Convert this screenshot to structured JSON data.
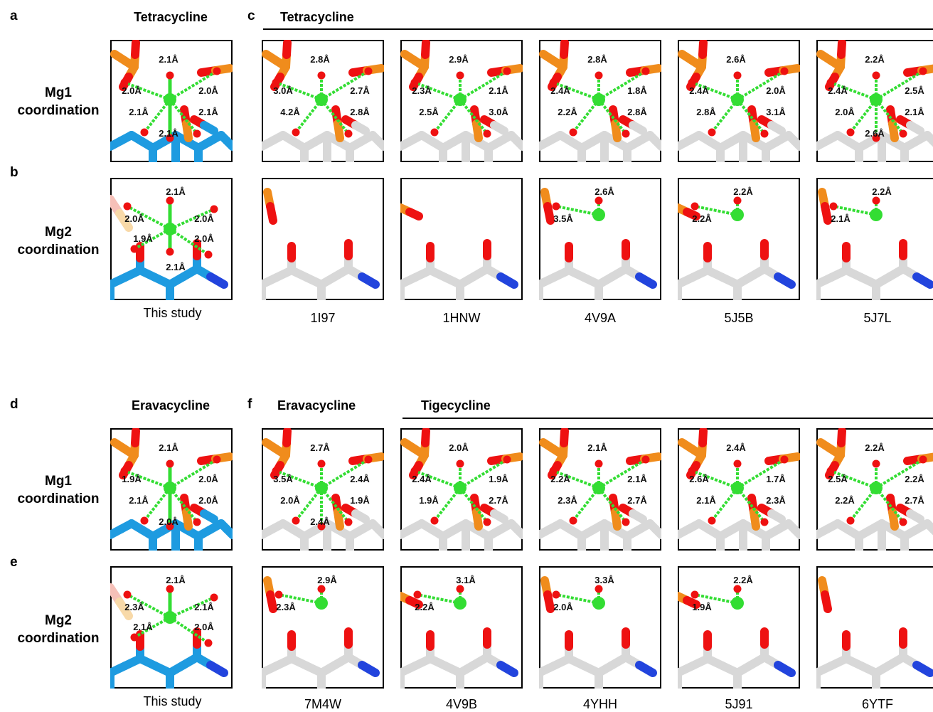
{
  "panel_letters": {
    "a": "a",
    "b": "b",
    "c": "c",
    "d": "d",
    "e": "e",
    "f": "f"
  },
  "top": {
    "ref_title": "Tetracycline",
    "group_title": "Tetracycline",
    "mg1_label": [
      "Mg1",
      "coordination"
    ],
    "mg2_label": [
      "Mg2",
      "coordination"
    ],
    "ref_caption": "This study",
    "captions": [
      "1I97",
      "1HNW",
      "4V9A",
      "5J5B",
      "5J7L"
    ]
  },
  "bottom": {
    "ref_title": "Eravacycline",
    "group1_title": "Eravacycline",
    "group2_title": "Tigecycline",
    "mg1_label": [
      "Mg1",
      "coordination"
    ],
    "mg2_label": [
      "Mg2",
      "coordination"
    ],
    "ref_caption": "This study",
    "captions": [
      "7M4W",
      "4V9B",
      "4YHH",
      "5J91",
      "6YTF"
    ]
  },
  "colors": {
    "magnesium": "#33dd33",
    "oxygen": "#ee1111",
    "phosphorus": "#f08c1c",
    "carbon_study": "#1e9be0",
    "carbon_pdb": "#d8d8d8",
    "nitrogen": "#2244dd"
  },
  "panels": [
    {
      "id": "a",
      "row": "mg1",
      "labels": [
        "2.1Å",
        "2.0Å",
        "2.0Å",
        "2.1Å",
        "2.1Å",
        "2.1Å"
      ]
    },
    {
      "id": "c1",
      "row": "mg1",
      "labels": [
        "2.8Å",
        "3.0Å",
        "2.7Å",
        "4.2Å",
        "2.8Å"
      ]
    },
    {
      "id": "c2",
      "row": "mg1",
      "labels": [
        "2.9Å",
        "2.3Å",
        "2.1Å",
        "2.5Å",
        "3.0Å"
      ]
    },
    {
      "id": "c3",
      "row": "mg1",
      "labels": [
        "2.8Å",
        "2.4Å",
        "1.8Å",
        "2.2Å",
        "2.8Å"
      ]
    },
    {
      "id": "c4",
      "row": "mg1",
      "labels": [
        "2.6Å",
        "2.4Å",
        "2.0Å",
        "2.8Å",
        "3.1Å"
      ]
    },
    {
      "id": "c5",
      "row": "mg1",
      "labels": [
        "2.2Å",
        "2.4Å",
        "2.5Å",
        "2.0Å",
        "2.1Å",
        "2.6Å"
      ]
    },
    {
      "id": "b",
      "row": "mg2",
      "labels": [
        "2.1Å",
        "2.0Å",
        "2.0Å",
        "1.9Å",
        "2.0Å",
        "2.1Å"
      ]
    },
    {
      "id": "c6",
      "row": "mg2",
      "labels": []
    },
    {
      "id": "c7",
      "row": "mg2",
      "labels": []
    },
    {
      "id": "c8",
      "row": "mg2",
      "labels": [
        "2.6Å",
        "3.5Å"
      ]
    },
    {
      "id": "c9",
      "row": "mg2",
      "labels": [
        "2.2Å",
        "2.2Å"
      ]
    },
    {
      "id": "c10",
      "row": "mg2",
      "labels": [
        "2.2Å",
        "2.1Å"
      ]
    },
    {
      "id": "d",
      "row": "mg1",
      "labels": [
        "2.1Å",
        "1.9Å",
        "2.0Å",
        "2.1Å",
        "2.0Å",
        "2.0Å"
      ]
    },
    {
      "id": "f1",
      "row": "mg1",
      "labels": [
        "2.7Å",
        "3.5Å",
        "2.4Å",
        "2.0Å",
        "1.9Å",
        "2.4Å"
      ]
    },
    {
      "id": "f2",
      "row": "mg1",
      "labels": [
        "2.0Å",
        "2.4Å",
        "1.9Å",
        "1.9Å",
        "2.7Å"
      ]
    },
    {
      "id": "f3",
      "row": "mg1",
      "labels": [
        "2.1Å",
        "2.2Å",
        "2.1Å",
        "2.3Å",
        "2.7Å"
      ]
    },
    {
      "id": "f4",
      "row": "mg1",
      "labels": [
        "2.4Å",
        "2.6Å",
        "1.7Å",
        "2.1Å",
        "2.3Å"
      ]
    },
    {
      "id": "f5",
      "row": "mg1",
      "labels": [
        "2.2Å",
        "2.5Å",
        "2.2Å",
        "2.2Å",
        "2.7Å"
      ]
    },
    {
      "id": "e",
      "row": "mg2",
      "labels": [
        "2.1Å",
        "2.3Å",
        "2.1Å",
        "2.1Å",
        "2.0Å"
      ]
    },
    {
      "id": "f6",
      "row": "mg2",
      "labels": [
        "2.9Å",
        "2.3Å"
      ]
    },
    {
      "id": "f7",
      "row": "mg2",
      "labels": [
        "3.1Å",
        "2.2Å"
      ]
    },
    {
      "id": "f8",
      "row": "mg2",
      "labels": [
        "3.3Å",
        "2.0Å"
      ]
    },
    {
      "id": "f9",
      "row": "mg2",
      "labels": [
        "2.2Å",
        "1.9Å"
      ]
    },
    {
      "id": "f10",
      "row": "mg2",
      "labels": []
    }
  ]
}
